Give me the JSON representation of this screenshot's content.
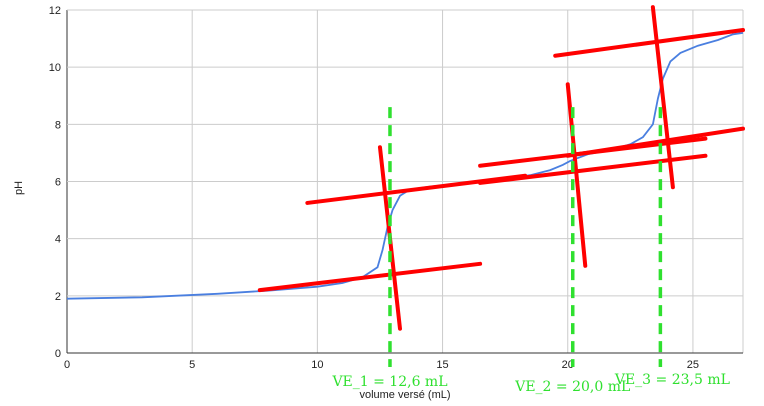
{
  "chart_data": {
    "type": "line",
    "title": "",
    "xlabel": "volume versé (mL)",
    "ylabel": "pH",
    "xlim": [
      0,
      27
    ],
    "ylim": [
      0,
      12
    ],
    "xticks": [
      0,
      5,
      10,
      15,
      20,
      25
    ],
    "yticks": [
      0,
      2,
      4,
      6,
      8,
      10,
      12
    ],
    "grid": true,
    "series": [
      {
        "color": "#4a7fe0",
        "points": [
          [
            0,
            1.9
          ],
          [
            3,
            1.95
          ],
          [
            6,
            2.07
          ],
          [
            8,
            2.18
          ],
          [
            10,
            2.32
          ],
          [
            11,
            2.45
          ],
          [
            11.8,
            2.65
          ],
          [
            12.4,
            3.0
          ],
          [
            12.6,
            3.6
          ],
          [
            12.8,
            4.4
          ],
          [
            13.0,
            5.0
          ],
          [
            13.3,
            5.5
          ],
          [
            13.7,
            5.72
          ],
          [
            14.5,
            5.82
          ],
          [
            16,
            5.95
          ],
          [
            17.5,
            6.1
          ],
          [
            18.5,
            6.22
          ],
          [
            19.3,
            6.4
          ],
          [
            19.8,
            6.58
          ],
          [
            20.1,
            6.72
          ],
          [
            20.8,
            6.95
          ],
          [
            21.8,
            7.12
          ],
          [
            22.5,
            7.3
          ],
          [
            23.0,
            7.55
          ],
          [
            23.4,
            8.0
          ],
          [
            23.6,
            8.9
          ],
          [
            23.8,
            9.6
          ],
          [
            24.1,
            10.2
          ],
          [
            24.5,
            10.5
          ],
          [
            25.2,
            10.75
          ],
          [
            26.0,
            10.95
          ],
          [
            26.6,
            11.15
          ],
          [
            27,
            11.2
          ]
        ]
      }
    ],
    "annotations": {
      "color": "#ff0000",
      "tangent_lines": [
        [
          [
            7.7,
            2.2
          ],
          [
            16.5,
            3.12
          ]
        ],
        [
          [
            9.6,
            5.25
          ],
          [
            18.3,
            6.2
          ]
        ],
        [
          [
            12.5,
            7.2
          ],
          [
            13.3,
            0.85
          ]
        ],
        [
          [
            16.5,
            6.55
          ],
          [
            25.5,
            7.5
          ]
        ],
        [
          [
            16.5,
            5.95
          ],
          [
            25.5,
            6.9
          ]
        ],
        [
          [
            20.0,
            9.4
          ],
          [
            20.7,
            3.05
          ]
        ],
        [
          [
            19.5,
            10.4
          ],
          [
            27,
            11.3
          ]
        ],
        [
          [
            20.0,
            6.9
          ],
          [
            27,
            7.85
          ]
        ],
        [
          [
            23.4,
            12.1
          ],
          [
            24.2,
            5.8
          ]
        ]
      ],
      "equivalence_lines": [
        {
          "x": 12.9,
          "label": "VE_1 = 12,6 mL"
        },
        {
          "x": 20.2,
          "label": "VE_2 = 20,0 mL"
        },
        {
          "x": 23.7,
          "label": "VE_3 = 23,5 mL"
        }
      ],
      "equivalence_color": "#2fe02f"
    }
  }
}
